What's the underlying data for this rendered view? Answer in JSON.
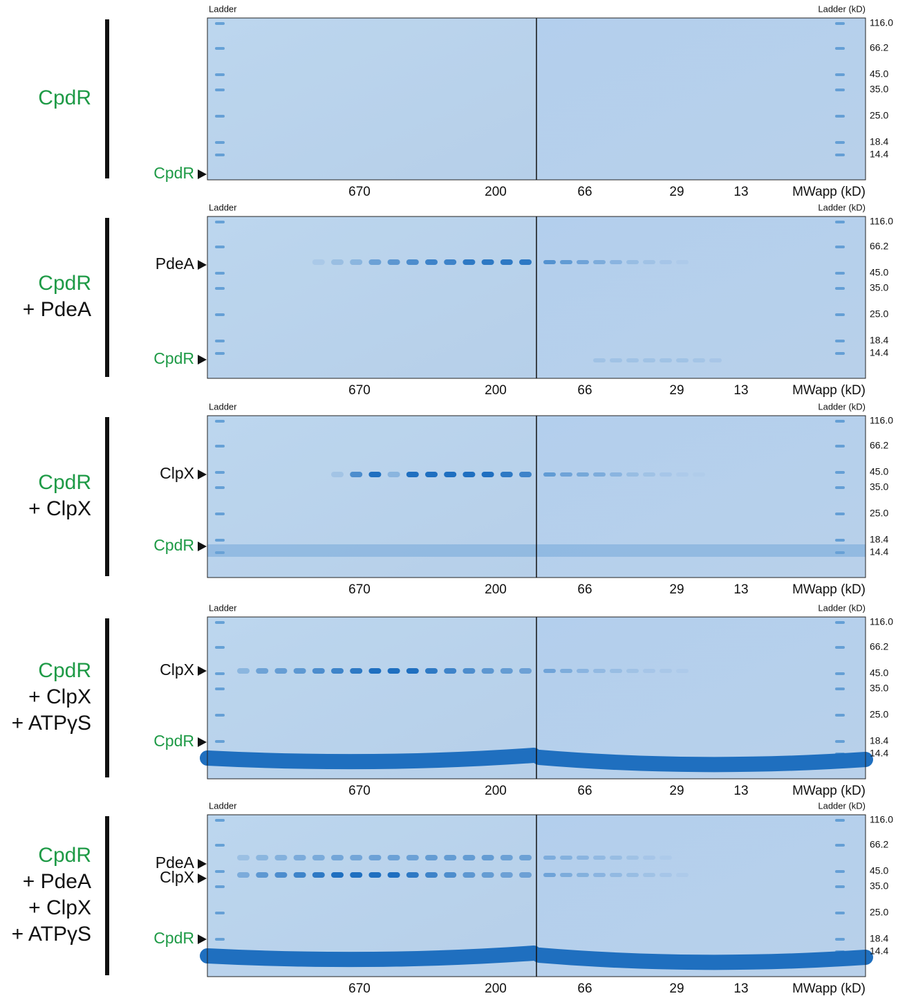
{
  "ladder_left": "Ladder",
  "ladder_right": "Ladder (kD)",
  "ladder_sizes": [
    "116.0",
    "66.2",
    "45.0",
    "35.0",
    "25.0",
    "18.4",
    "14.4"
  ],
  "mwapp_ticks": [
    "670",
    "200",
    "66",
    "29",
    "13"
  ],
  "mwapp_label": "MWapp (kD)",
  "panels": [
    {
      "condition": {
        "protein": "CpdR",
        "additions": []
      },
      "arrows": [
        "CpdR"
      ]
    },
    {
      "condition": {
        "protein": "CpdR",
        "additions": [
          "+ PdeA"
        ]
      },
      "arrows": [
        "PdeA",
        "CpdR"
      ]
    },
    {
      "condition": {
        "protein": "CpdR",
        "additions": [
          "+ ClpX"
        ]
      },
      "arrows": [
        "ClpX",
        "CpdR"
      ]
    },
    {
      "condition": {
        "protein": "CpdR",
        "additions": [
          "+ ClpX",
          "+ ATPγS"
        ]
      },
      "arrows": [
        "ClpX",
        "CpdR"
      ]
    },
    {
      "condition": {
        "protein": "CpdR",
        "additions": [
          "+ PdeA",
          "+ ClpX",
          "+ ATPγS"
        ]
      },
      "arrows": [
        "PdeA",
        "ClpX",
        "CpdR"
      ]
    }
  ]
}
